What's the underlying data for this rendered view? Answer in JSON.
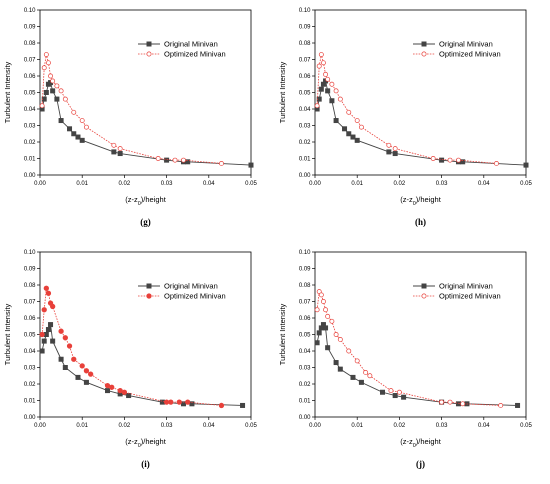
{
  "chart_data": [
    {
      "type": "line",
      "panel_label": "(g)",
      "xlabel_main": "(z-z",
      "xlabel_sub": "0",
      "xlabel_tail": ")/height",
      "ylabel": "Turbulent Intensity",
      "xlim": [
        0,
        0.05
      ],
      "ylim": [
        0,
        0.1
      ],
      "x_ticks": [
        "0.00",
        "0.01",
        "0.02",
        "0.03",
        "0.04",
        "0.05"
      ],
      "y_ticks": [
        "0.00",
        "0.01",
        "0.02",
        "0.03",
        "0.04",
        "0.05",
        "0.06",
        "0.07",
        "0.08",
        "0.09",
        "0.10"
      ],
      "marker_style": "open",
      "legend_position": "top-right",
      "series": [
        {
          "name": "Original Minivan",
          "color": "#444444",
          "marker": "square",
          "x": [
            0.0005,
            0.001,
            0.0015,
            0.002,
            0.0025,
            0.003,
            0.004,
            0.005,
            0.007,
            0.008,
            0.009,
            0.01,
            0.0175,
            0.019,
            0.03,
            0.034,
            0.035,
            0.05
          ],
          "y": [
            0.04,
            0.046,
            0.05,
            0.055,
            0.056,
            0.051,
            0.046,
            0.033,
            0.028,
            0.025,
            0.023,
            0.021,
            0.014,
            0.013,
            0.009,
            0.008,
            0.008,
            0.006
          ]
        },
        {
          "name": "Optimized Minivan",
          "color": "#e8403a",
          "marker": "circle",
          "x": [
            0.0005,
            0.001,
            0.0015,
            0.002,
            0.0025,
            0.003,
            0.004,
            0.005,
            0.006,
            0.008,
            0.01,
            0.011,
            0.0175,
            0.019,
            0.028,
            0.032,
            0.034,
            0.043
          ],
          "y": [
            0.042,
            0.065,
            0.073,
            0.068,
            0.06,
            0.057,
            0.054,
            0.051,
            0.046,
            0.038,
            0.033,
            0.029,
            0.018,
            0.016,
            0.01,
            0.009,
            0.009,
            0.007
          ]
        }
      ]
    },
    {
      "type": "line",
      "panel_label": "(h)",
      "xlabel_main": "(z-z",
      "xlabel_sub": "0",
      "xlabel_tail": ")/height",
      "ylabel": "Turbulent Intensity",
      "xlim": [
        0,
        0.05
      ],
      "ylim": [
        0,
        0.1
      ],
      "x_ticks": [
        "0.00",
        "0.01",
        "0.02",
        "0.03",
        "0.04",
        "0.05"
      ],
      "y_ticks": [
        "0.00",
        "0.01",
        "0.02",
        "0.03",
        "0.04",
        "0.05",
        "0.06",
        "0.07",
        "0.08",
        "0.09",
        "0.10"
      ],
      "marker_style": "open",
      "legend_position": "top-right",
      "series": [
        {
          "name": "Original Minivan",
          "color": "#444444",
          "marker": "square",
          "x": [
            0.0005,
            0.001,
            0.0015,
            0.002,
            0.0025,
            0.003,
            0.004,
            0.005,
            0.007,
            0.008,
            0.009,
            0.01,
            0.0175,
            0.019,
            0.03,
            0.034,
            0.035,
            0.05
          ],
          "y": [
            0.04,
            0.046,
            0.052,
            0.055,
            0.057,
            0.051,
            0.045,
            0.033,
            0.028,
            0.025,
            0.023,
            0.021,
            0.014,
            0.013,
            0.009,
            0.008,
            0.008,
            0.006
          ]
        },
        {
          "name": "Optimized Minivan",
          "color": "#e8403a",
          "marker": "circle",
          "x": [
            0.0005,
            0.001,
            0.0015,
            0.002,
            0.0025,
            0.003,
            0.004,
            0.005,
            0.006,
            0.008,
            0.01,
            0.011,
            0.0175,
            0.019,
            0.028,
            0.032,
            0.034,
            0.043
          ],
          "y": [
            0.042,
            0.066,
            0.073,
            0.068,
            0.061,
            0.058,
            0.055,
            0.051,
            0.046,
            0.038,
            0.033,
            0.029,
            0.018,
            0.016,
            0.01,
            0.009,
            0.009,
            0.007
          ]
        }
      ]
    },
    {
      "type": "line",
      "panel_label": "(i)",
      "xlabel_main": "(z-z",
      "xlabel_sub": "0",
      "xlabel_tail": ")/height",
      "ylabel": "Turbulent Intensity",
      "xlim": [
        0,
        0.05
      ],
      "ylim": [
        0,
        0.1
      ],
      "x_ticks": [
        "0.00",
        "0.01",
        "0.02",
        "0.03",
        "0.04",
        "0.05"
      ],
      "y_ticks": [
        "0.00",
        "0.01",
        "0.02",
        "0.03",
        "0.04",
        "0.05",
        "0.06",
        "0.07",
        "0.08",
        "0.09",
        "0.10"
      ],
      "marker_style": "filled",
      "legend_position": "top-right",
      "series": [
        {
          "name": "Original Minivan",
          "color": "#444444",
          "marker": "square",
          "x": [
            0.0005,
            0.001,
            0.0015,
            0.002,
            0.0025,
            0.003,
            0.005,
            0.006,
            0.009,
            0.011,
            0.016,
            0.019,
            0.021,
            0.029,
            0.034,
            0.036,
            0.048
          ],
          "y": [
            0.04,
            0.046,
            0.05,
            0.053,
            0.056,
            0.046,
            0.035,
            0.03,
            0.024,
            0.021,
            0.016,
            0.014,
            0.013,
            0.009,
            0.008,
            0.008,
            0.007
          ]
        },
        {
          "name": "Optimized Minivan",
          "color": "#e8403a",
          "marker": "circle",
          "x": [
            0.0005,
            0.001,
            0.0015,
            0.002,
            0.0025,
            0.003,
            0.005,
            0.006,
            0.007,
            0.008,
            0.01,
            0.011,
            0.012,
            0.016,
            0.017,
            0.019,
            0.02,
            0.03,
            0.031,
            0.033,
            0.035,
            0.043
          ],
          "y": [
            0.05,
            0.065,
            0.078,
            0.075,
            0.069,
            0.067,
            0.052,
            0.048,
            0.043,
            0.035,
            0.031,
            0.028,
            0.026,
            0.019,
            0.018,
            0.016,
            0.015,
            0.009,
            0.009,
            0.009,
            0.009,
            0.007
          ]
        }
      ]
    },
    {
      "type": "line",
      "panel_label": "(j)",
      "xlabel_main": "(z-z",
      "xlabel_sub": "0",
      "xlabel_tail": ")/height",
      "ylabel": "Turbulent Intensity",
      "xlim": [
        0,
        0.05
      ],
      "ylim": [
        0,
        0.1
      ],
      "x_ticks": [
        "0.00",
        "0.01",
        "0.02",
        "0.03",
        "0.04",
        "0.05"
      ],
      "y_ticks": [
        "0.00",
        "0.01",
        "0.02",
        "0.03",
        "0.04",
        "0.05",
        "0.06",
        "0.07",
        "0.08",
        "0.09",
        "0.10"
      ],
      "marker_style": "open",
      "legend_position": "top-right",
      "series": [
        {
          "name": "Original Minivan",
          "color": "#444444",
          "marker": "square",
          "x": [
            0.0005,
            0.001,
            0.0015,
            0.002,
            0.0025,
            0.003,
            0.005,
            0.006,
            0.009,
            0.011,
            0.016,
            0.019,
            0.021,
            0.03,
            0.034,
            0.036,
            0.048
          ],
          "y": [
            0.045,
            0.051,
            0.054,
            0.056,
            0.054,
            0.042,
            0.033,
            0.029,
            0.024,
            0.021,
            0.015,
            0.013,
            0.012,
            0.009,
            0.008,
            0.008,
            0.007
          ]
        },
        {
          "name": "Optimized Minivan",
          "color": "#e8403a",
          "marker": "circle",
          "x": [
            0.0005,
            0.001,
            0.0015,
            0.002,
            0.0025,
            0.003,
            0.004,
            0.005,
            0.006,
            0.008,
            0.01,
            0.012,
            0.013,
            0.018,
            0.02,
            0.03,
            0.032,
            0.035,
            0.044
          ],
          "y": [
            0.065,
            0.076,
            0.074,
            0.07,
            0.065,
            0.061,
            0.058,
            0.05,
            0.047,
            0.04,
            0.034,
            0.027,
            0.025,
            0.016,
            0.015,
            0.009,
            0.009,
            0.008,
            0.007
          ]
        }
      ]
    }
  ]
}
